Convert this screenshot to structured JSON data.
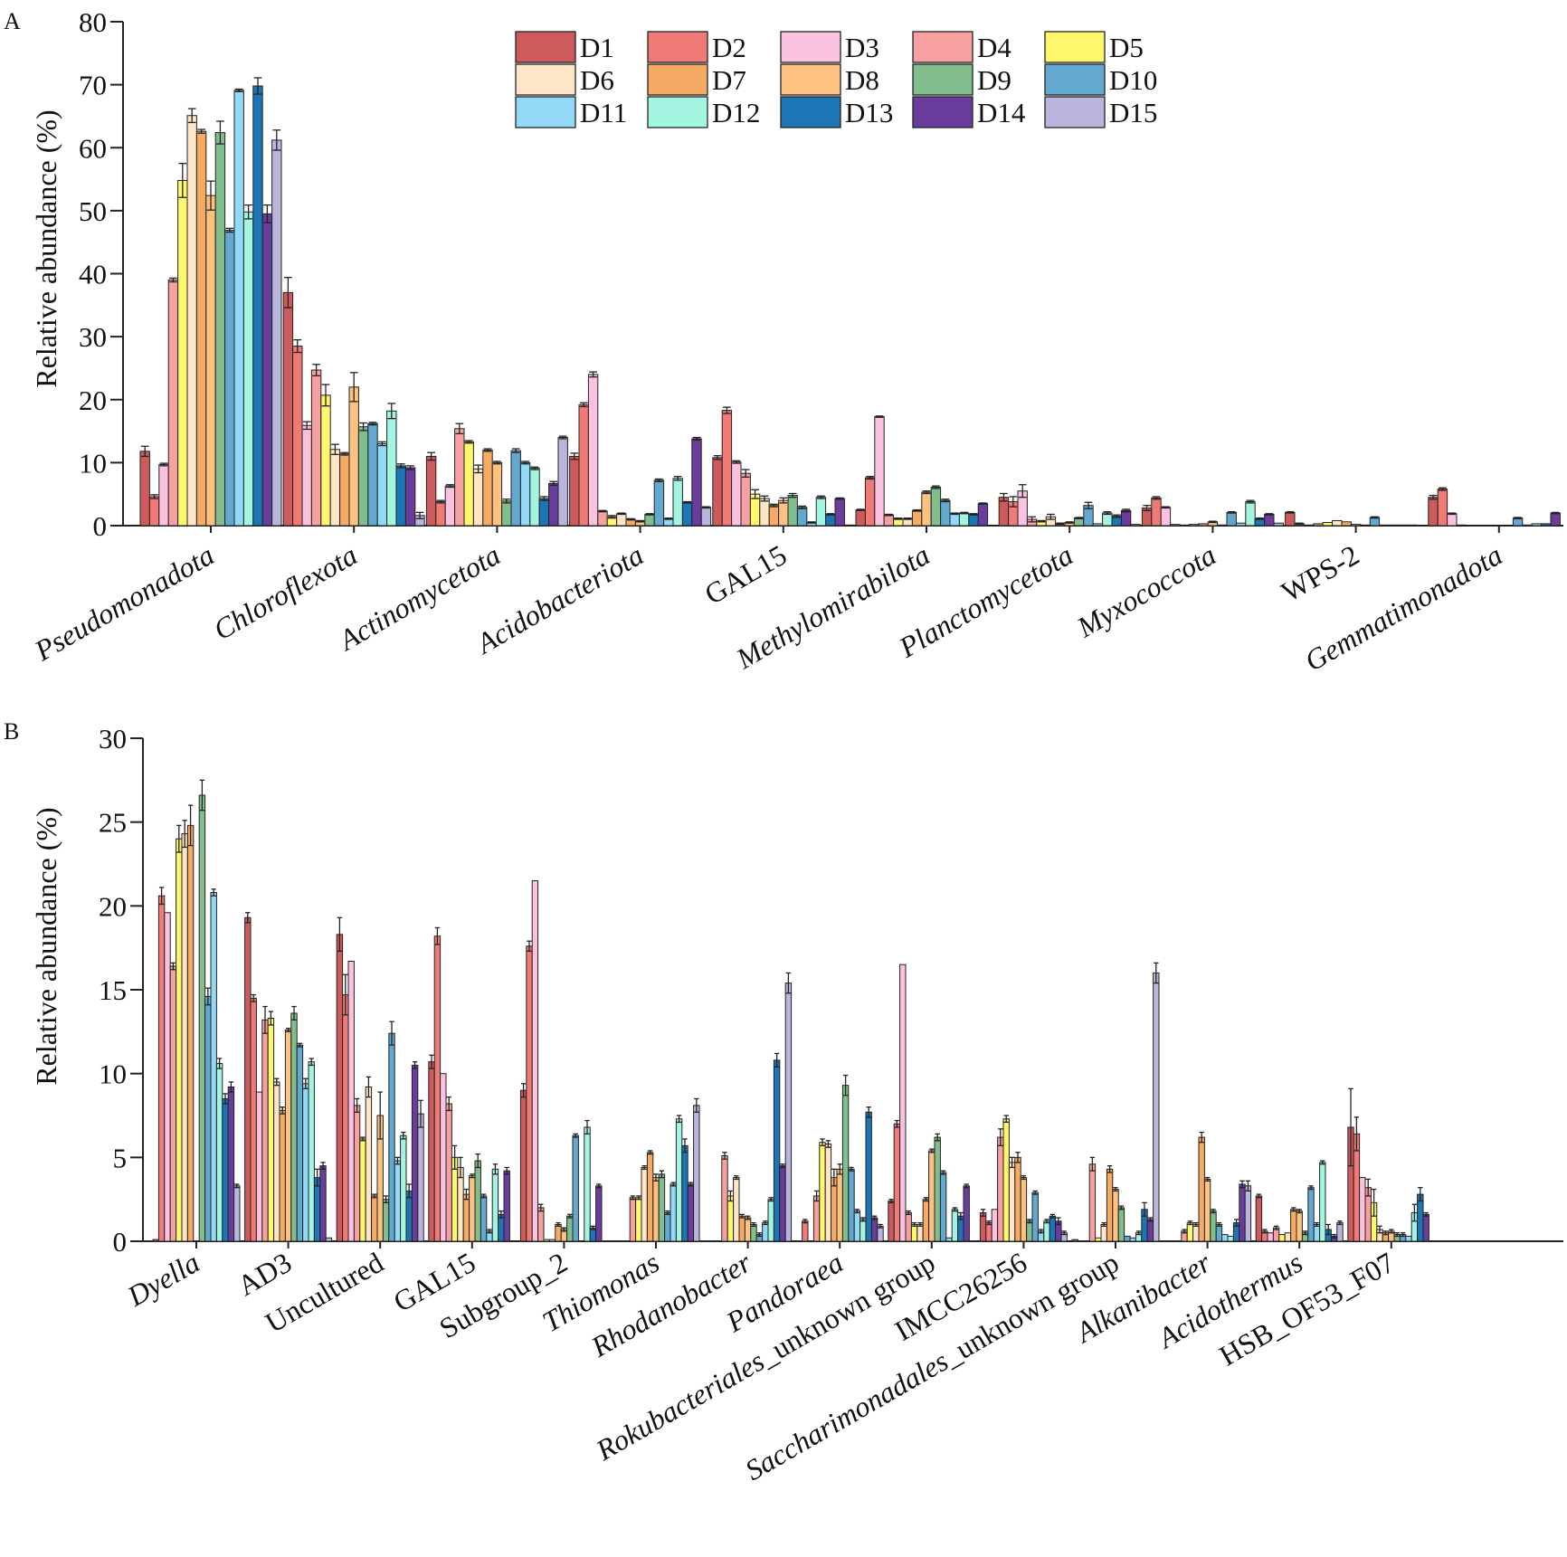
{
  "chart_data": [
    {
      "panel": "A",
      "type": "bar",
      "ylabel": "Relative abundance (%)",
      "ylim": [
        0,
        80
      ],
      "yticks": [
        0,
        10,
        20,
        30,
        40,
        50,
        60,
        70,
        80
      ],
      "categories": [
        "Pseudomonadota",
        "Chloroflexota",
        "Actinomycetota",
        "Acidobacteriota",
        "GAL15",
        "Methylomirabilota",
        "Planctomycetota",
        "Myxococcota",
        "WPS-2",
        "Gemmatimonadota"
      ],
      "italic": [
        true,
        true,
        true,
        true,
        false,
        true,
        true,
        true,
        false,
        true
      ],
      "series": [
        {
          "name": "D1",
          "values": [
            11.8,
            37.0,
            11.0,
            11.0,
            10.8,
            2.5,
            4.5,
            2.8,
            2.1,
            4.5
          ],
          "errors": [
            0.8,
            2.4,
            0.6,
            0.5,
            0.3,
            0.1,
            0.6,
            0.4,
            0.1,
            0.3
          ]
        },
        {
          "name": "D2",
          "values": [
            4.6,
            28.5,
            3.8,
            19.2,
            18.3,
            7.6,
            3.8,
            4.4,
            0.3,
            5.8
          ],
          "errors": [
            0.3,
            1.0,
            0.2,
            0.3,
            0.5,
            0.2,
            0.8,
            0.2,
            0.1,
            0.2
          ]
        },
        {
          "name": "D3",
          "values": [
            9.7,
            15.9,
            6.3,
            24.0,
            10.1,
            17.3,
            5.5,
            2.9,
            0.1,
            1.9
          ],
          "errors": [
            0.2,
            0.6,
            0.2,
            0.4,
            0.2,
            0.1,
            1.0,
            0.1,
            0.0,
            0.1
          ]
        },
        {
          "name": "D4",
          "values": [
            39.0,
            24.7,
            15.4,
            2.3,
            8.3,
            1.7,
            1.0,
            0.2,
            0.3,
            0.1
          ],
          "errors": [
            0.3,
            0.9,
            0.8,
            0.1,
            0.6,
            0.1,
            0.4,
            0.0,
            0.0,
            0.0
          ]
        },
        {
          "name": "D5",
          "values": [
            54.8,
            20.7,
            13.3,
            1.4,
            5.0,
            1.1,
            0.7,
            0.1,
            0.5,
            0.0
          ],
          "errors": [
            2.7,
            1.7,
            0.2,
            0.2,
            0.7,
            0.1,
            0.1,
            0.0,
            0.0,
            0.0
          ]
        },
        {
          "name": "D6",
          "values": [
            65.1,
            12.1,
            9.0,
            1.9,
            4.3,
            1.1,
            1.4,
            0.2,
            0.8,
            0.0
          ],
          "errors": [
            1.1,
            0.8,
            0.6,
            0.1,
            0.4,
            0.1,
            0.4,
            0.0,
            0.0,
            0.0
          ]
        },
        {
          "name": "D7",
          "values": [
            62.6,
            11.4,
            12.0,
            1.0,
            3.2,
            2.4,
            0.3,
            0.3,
            0.6,
            0.0
          ],
          "errors": [
            0.3,
            0.2,
            0.2,
            0.1,
            0.2,
            0.1,
            0.1,
            0.0,
            0.0,
            0.0
          ]
        },
        {
          "name": "D8",
          "values": [
            52.4,
            22.0,
            10.0,
            0.7,
            4.0,
            5.3,
            0.5,
            0.6,
            0.2,
            0.0
          ],
          "errors": [
            2.3,
            2.3,
            0.2,
            0.1,
            0.4,
            0.2,
            0.1,
            0.1,
            0.0,
            0.0
          ]
        },
        {
          "name": "D9",
          "values": [
            62.4,
            15.7,
            3.9,
            1.8,
            4.8,
            6.1,
            1.2,
            0.1,
            0.1,
            0.0
          ],
          "errors": [
            1.8,
            0.6,
            0.3,
            0.1,
            0.3,
            0.2,
            0.1,
            0.0,
            0.0,
            0.0
          ]
        },
        {
          "name": "D10",
          "values": [
            46.9,
            16.2,
            11.9,
            7.2,
            2.9,
            4.0,
            3.2,
            2.1,
            1.3,
            1.2
          ],
          "errors": [
            0.3,
            0.2,
            0.3,
            0.2,
            0.2,
            0.2,
            0.5,
            0.1,
            0.1,
            0.1
          ]
        },
        {
          "name": "D11",
          "values": [
            69.1,
            13.0,
            10.0,
            1.1,
            0.5,
            1.9,
            0.3,
            0.4,
            0.1,
            0.1
          ],
          "errors": [
            0.2,
            0.3,
            0.2,
            0.1,
            0.1,
            0.1,
            0.0,
            0.0,
            0.0,
            0.0
          ]
        },
        {
          "name": "D12",
          "values": [
            49.8,
            18.2,
            9.1,
            7.5,
            4.5,
            2.0,
            2.0,
            3.8,
            0.1,
            0.3
          ],
          "errors": [
            1.1,
            1.2,
            0.2,
            0.3,
            0.2,
            0.1,
            0.2,
            0.2,
            0.0,
            0.0
          ]
        },
        {
          "name": "D13",
          "values": [
            69.8,
            9.5,
            4.3,
            3.7,
            1.8,
            1.8,
            1.5,
            1.1,
            0.1,
            0.3
          ],
          "errors": [
            1.3,
            0.3,
            0.3,
            0.1,
            0.1,
            0.1,
            0.2,
            0.1,
            0.0,
            0.0
          ]
        },
        {
          "name": "D14",
          "values": [
            49.5,
            9.2,
            6.7,
            13.8,
            4.3,
            3.5,
            2.4,
            1.8,
            0.1,
            2.0
          ],
          "errors": [
            1.4,
            0.3,
            0.3,
            0.2,
            0.1,
            0.1,
            0.2,
            0.1,
            0.0,
            0.1
          ]
        },
        {
          "name": "D15",
          "values": [
            61.2,
            1.6,
            14.0,
            2.9,
            0.1,
            0.0,
            0.2,
            0.4,
            0.0,
            0.0
          ],
          "errors": [
            1.6,
            0.5,
            0.2,
            0.1,
            0.0,
            0.0,
            0.0,
            0.0,
            0.0,
            0.0
          ]
        }
      ],
      "legend": "top-right",
      "grid": false
    },
    {
      "panel": "B",
      "type": "bar",
      "ylabel": "Relative abundance (%)",
      "ylim": [
        0,
        30
      ],
      "yticks": [
        0,
        5,
        10,
        15,
        20,
        25,
        30
      ],
      "categories": [
        "Dyella",
        "AD3",
        "Uncultured",
        "GAL15",
        "Subgroup_2",
        "Thiomonas",
        "Rhodanobacter",
        "Pandoraea",
        "Rokubacteriales_unknown group",
        "IMCC26256",
        "Saccharimonadales_unknown group",
        "Alkanibacter",
        "Acidothermus",
        "HSB_OF53_F07"
      ],
      "italic": [
        true,
        false,
        false,
        false,
        false,
        true,
        true,
        true,
        false,
        false,
        false,
        true,
        true,
        false
      ],
      "italic_parts": {
        "Rokubacteriales_unknown group": "Rokubacteriales",
        "Saccharimonadales_unknown group": "Saccharimonadales"
      },
      "series": [
        {
          "name": "D1",
          "values": [
            0.1,
            19.3,
            18.3,
            10.7,
            9.0,
            0.0,
            0.0,
            0.0,
            2.4,
            1.7,
            0.1,
            0.0,
            2.7,
            6.8
          ],
          "errors": [
            0.0,
            0.3,
            1.0,
            0.4,
            0.4,
            0.0,
            0.0,
            0.0,
            0.1,
            0.2,
            0.0,
            0.0,
            0.1,
            2.3
          ]
        },
        {
          "name": "D2",
          "values": [
            20.6,
            14.5,
            14.7,
            18.2,
            17.6,
            0.0,
            0.0,
            1.2,
            7.0,
            1.1,
            0.0,
            0.0,
            0.6,
            6.4
          ],
          "errors": [
            0.5,
            0.2,
            1.2,
            0.5,
            0.3,
            0.0,
            0.0,
            0.1,
            0.2,
            0.1,
            0.0,
            0.0,
            0.1,
            1.0
          ]
        },
        {
          "name": "D3",
          "values": [
            19.6,
            8.9,
            16.7,
            10.0,
            21.5,
            0.0,
            0.0,
            0.0,
            16.5,
            1.9,
            0.0,
            0.0,
            0.5,
            3.8
          ]
        },
        {
          "name": "D4",
          "values": [
            16.4,
            13.2,
            8.1,
            8.2,
            2.0,
            2.6,
            5.1,
            2.7,
            1.7,
            6.2,
            4.6,
            0.6,
            0.8,
            3.2
          ],
          "errors": [
            0.2,
            0.8,
            0.4,
            0.4,
            0.2,
            0.1,
            0.2,
            0.3,
            0.1,
            0.5,
            0.4,
            0.1,
            0.1,
            0.5
          ]
        },
        {
          "name": "D5",
          "values": [
            24.0,
            13.3,
            6.1,
            5.0,
            0.1,
            2.6,
            2.7,
            5.9,
            1.0,
            7.3,
            0.2,
            1.1,
            0.4,
            2.3
          ],
          "errors": [
            0.8,
            0.4,
            0.1,
            0.7,
            0.0,
            0.1,
            0.3,
            0.2,
            0.1,
            0.2,
            0.0,
            0.1,
            0.0,
            0.8
          ]
        },
        {
          "name": "D6",
          "values": [
            24.3,
            9.5,
            9.2,
            4.4,
            0.1,
            4.4,
            3.8,
            5.8,
            1.0,
            4.7,
            1.0,
            1.0,
            0.5,
            0.7
          ],
          "errors": [
            0.8,
            0.2,
            0.6,
            0.6,
            0.0,
            0.1,
            0.1,
            0.2,
            0.1,
            0.3,
            0.1,
            0.1,
            0.0,
            0.2
          ]
        },
        {
          "name": "D7",
          "values": [
            24.8,
            7.8,
            2.7,
            2.8,
            1.0,
            5.3,
            1.5,
            3.8,
            2.5,
            5.0,
            4.3,
            6.2,
            1.9,
            0.5
          ],
          "errors": [
            1.2,
            0.2,
            0.1,
            0.3,
            0.1,
            0.1,
            0.1,
            0.5,
            0.1,
            0.3,
            0.2,
            0.3,
            0.1,
            0.1
          ]
        },
        {
          "name": "D8",
          "values": [
            0.0,
            12.6,
            7.5,
            3.9,
            0.7,
            3.8,
            1.4,
            4.3,
            5.4,
            3.8,
            3.1,
            3.7,
            1.8,
            0.6
          ],
          "errors": [
            0.0,
            0.1,
            1.4,
            0.1,
            0.1,
            0.2,
            0.1,
            0.3,
            0.1,
            0.1,
            0.1,
            0.1,
            0.1,
            0.1
          ]
        },
        {
          "name": "D9",
          "values": [
            26.6,
            13.6,
            2.5,
            4.8,
            1.5,
            4.0,
            1.0,
            9.3,
            6.2,
            1.2,
            2.0,
            1.8,
            0.5,
            0.4
          ],
          "errors": [
            0.9,
            0.4,
            0.2,
            0.4,
            0.1,
            0.2,
            0.1,
            0.6,
            0.2,
            0.1,
            0.1,
            0.1,
            0.1,
            0.1
          ]
        },
        {
          "name": "D10",
          "values": [
            14.6,
            11.7,
            12.4,
            2.7,
            6.3,
            1.7,
            0.4,
            4.3,
            4.1,
            2.9,
            0.3,
            1.0,
            3.2,
            0.4
          ],
          "errors": [
            0.5,
            0.1,
            0.7,
            0.1,
            0.1,
            0.1,
            0.1,
            0.1,
            0.1,
            0.1,
            0.0,
            0.1,
            0.1,
            0.1
          ]
        },
        {
          "name": "D11",
          "values": [
            20.8,
            9.4,
            4.8,
            0.6,
            0.0,
            3.4,
            1.1,
            1.8,
            0.2,
            0.6,
            0.2,
            0.4,
            1.0,
            0.3
          ],
          "errors": [
            0.2,
            0.3,
            0.2,
            0.1,
            0.0,
            0.1,
            0.1,
            0.1,
            0.0,
            0.1,
            0.0,
            0.0,
            0.1,
            0.0
          ]
        },
        {
          "name": "D12",
          "values": [
            10.6,
            10.7,
            6.3,
            4.3,
            6.8,
            7.3,
            2.5,
            1.3,
            1.9,
            1.2,
            0.5,
            0.3,
            4.7,
            1.7
          ],
          "errors": [
            0.3,
            0.2,
            0.2,
            0.3,
            0.4,
            0.2,
            0.1,
            0.1,
            0.1,
            0.1,
            0.1,
            0.0,
            0.1,
            0.5
          ]
        },
        {
          "name": "D13",
          "values": [
            8.5,
            3.8,
            3.0,
            1.6,
            0.8,
            5.7,
            10.8,
            7.7,
            1.5,
            1.5,
            1.9,
            1.1,
            0.7,
            2.8
          ],
          "errors": [
            0.3,
            0.5,
            0.4,
            0.2,
            0.1,
            0.4,
            0.4,
            0.3,
            0.2,
            0.1,
            0.4,
            0.2,
            0.3,
            0.4
          ]
        },
        {
          "name": "D14",
          "values": [
            9.2,
            4.5,
            10.5,
            4.2,
            3.3,
            3.4,
            4.5,
            1.4,
            3.3,
            1.2,
            1.3,
            3.4,
            0.3,
            1.6
          ],
          "errors": [
            0.3,
            0.2,
            0.2,
            0.2,
            0.1,
            0.1,
            0.1,
            0.1,
            0.1,
            0.2,
            0.1,
            0.2,
            0.1,
            0.1
          ]
        },
        {
          "name": "D15",
          "values": [
            3.3,
            0.2,
            7.6,
            0.0,
            0.0,
            8.1,
            15.4,
            0.9,
            0.0,
            0.5,
            16.0,
            3.3,
            1.1,
            0.0
          ],
          "errors": [
            0.1,
            0.0,
            0.8,
            0.0,
            0.0,
            0.4,
            0.6,
            0.1,
            0.0,
            0.1,
            0.6,
            0.3,
            0.1,
            0.0
          ]
        }
      ],
      "legend": "none",
      "grid": false
    }
  ],
  "colors": {
    "D1": "#cd5a5c",
    "D2": "#ef7a76",
    "D3": "#fbc2e0",
    "D4": "#f7a0a1",
    "D5": "#fdf76c",
    "D6": "#fde5c5",
    "D7": "#f5ab63",
    "D8": "#fdc181",
    "D9": "#82bd8d",
    "D10": "#62a8cf",
    "D11": "#92d9f7",
    "D12": "#a3f5e2",
    "D13": "#1c76b6",
    "D14": "#6a3c9c",
    "D15": "#bab5dc"
  }
}
